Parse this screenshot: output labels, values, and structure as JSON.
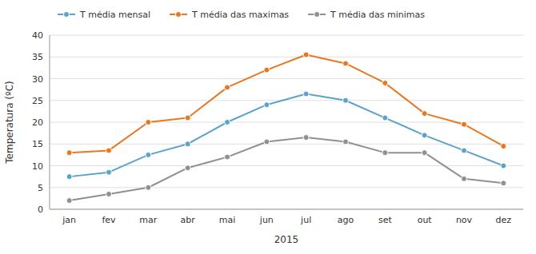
{
  "chart_data": {
    "type": "line",
    "categories": [
      "jan",
      "fev",
      "mar",
      "abr",
      "mai",
      "jun",
      "jul",
      "ago",
      "set",
      "out",
      "nov",
      "dez"
    ],
    "series": [
      {
        "name": "T média mensal",
        "color": "#5ba3c9",
        "values": [
          7.5,
          8.5,
          12.5,
          15.0,
          20.0,
          24.0,
          26.5,
          25.0,
          21.0,
          17.0,
          13.5,
          10.0
        ]
      },
      {
        "name": "T média das maximas",
        "color": "#e87722",
        "values": [
          13.0,
          13.5,
          20.0,
          21.0,
          28.0,
          32.0,
          35.5,
          33.5,
          29.0,
          22.0,
          19.5,
          14.5
        ]
      },
      {
        "name": "T média das minimas",
        "color": "#909090",
        "values": [
          2.0,
          3.5,
          5.0,
          9.5,
          12.0,
          15.5,
          16.5,
          15.5,
          13.0,
          13.0,
          7.0,
          6.0
        ]
      }
    ],
    "ylabel": "Temperatura (ºC)",
    "xlabel": "2015",
    "ylim": [
      0,
      40
    ],
    "yticks": [
      0,
      5,
      10,
      15,
      20,
      25,
      30,
      35,
      40
    ],
    "grid": true,
    "legend": "top",
    "marker": "circle"
  }
}
